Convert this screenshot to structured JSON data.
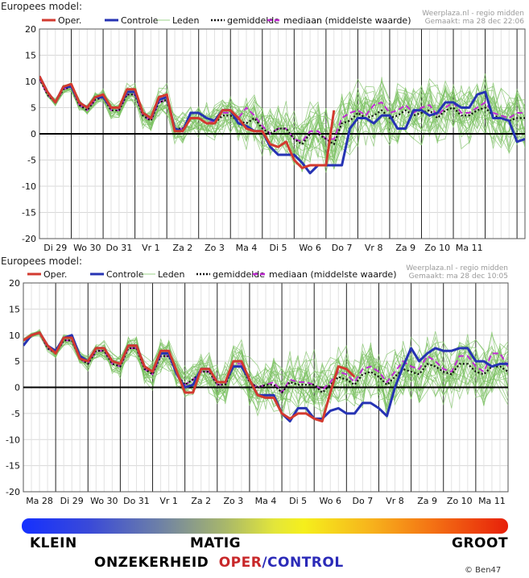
{
  "chart_data": [
    {
      "type": "line",
      "title": "Europees model:",
      "credit": [
        "Weerplaza.nl - regio midden",
        "Gemaakt: ma 28 dec 22:06"
      ],
      "legend": [
        "Oper.",
        "Controle",
        "Leden",
        "gemiddelde",
        "mediaan (middelste waarde)"
      ],
      "legend_position": "top",
      "ylim": [
        -20,
        20
      ],
      "yticks": [
        20,
        15,
        10,
        5,
        0,
        -5,
        -10,
        -15,
        -20
      ],
      "xlim": [
        0,
        15.25
      ],
      "day_labels": [
        "Di 29",
        "Wo 30",
        "Do 31",
        "Vr 1",
        "Za 2",
        "Zo 3",
        "Ma 4",
        "Di 5",
        "Wo 6",
        "Do 7",
        "Vr 8",
        "Za 9",
        "Zo 10",
        "Ma 11"
      ],
      "day_label_x": [
        0.5,
        1.5,
        2.5,
        3.5,
        4.5,
        5.5,
        6.5,
        7.5,
        8.5,
        9.5,
        10.5,
        11.5,
        12.5,
        13.5
      ],
      "series": [
        {
          "name": "Oper.",
          "color": "#d23a2f",
          "x": [
            0,
            0.25,
            0.5,
            0.75,
            1,
            1.25,
            1.5,
            1.75,
            2,
            2.25,
            2.5,
            2.75,
            3,
            3.25,
            3.5,
            3.75,
            4,
            4.25,
            4.5,
            4.75,
            5,
            5.25,
            5.5,
            5.75,
            6,
            6.25,
            6.5,
            6.75,
            7,
            7.25,
            7.5,
            7.75,
            8,
            8.25,
            8.5,
            8.75,
            9,
            9.25
          ],
          "values": [
            11,
            8,
            6,
            9,
            9.5,
            6,
            5,
            7,
            7.5,
            5,
            5,
            8.5,
            8.5,
            4,
            3,
            7,
            7.5,
            0.5,
            0.5,
            3,
            3,
            2,
            2,
            4.5,
            4.5,
            3,
            1,
            0.5,
            0.5,
            -2,
            -2.5,
            -1.5,
            -5,
            -6.5,
            -6,
            -6,
            -6,
            4.5
          ]
        },
        {
          "name": "Controle",
          "color": "#2633b3",
          "x": [
            0,
            0.25,
            0.5,
            0.75,
            1,
            1.25,
            1.5,
            1.75,
            2,
            2.25,
            2.5,
            2.75,
            3,
            3.25,
            3.5,
            3.75,
            4,
            4.25,
            4.5,
            4.75,
            5,
            5.25,
            5.5,
            5.75,
            6,
            6.25,
            6.5,
            6.75,
            7,
            7.25,
            7.5,
            7.75,
            8,
            8.25,
            8.5,
            8.75,
            9,
            9.25,
            9.5,
            9.75,
            10,
            10.25,
            10.5,
            10.75,
            11,
            11.25,
            11.5,
            11.75,
            12,
            12.25,
            12.5,
            12.75,
            13,
            13.25,
            13.5,
            13.75,
            14,
            14.25,
            14.5,
            14.75,
            15,
            15.25
          ],
          "values": [
            11,
            8,
            6,
            9,
            9,
            6,
            5,
            7,
            7,
            5,
            5,
            8,
            8,
            4,
            3,
            6.5,
            7,
            1,
            0.5,
            4,
            4,
            3,
            2.5,
            4.5,
            4.5,
            2,
            1.5,
            0.5,
            0.5,
            -2.5,
            -4,
            -4,
            -4,
            -5.5,
            -7.5,
            -6,
            -6,
            -6,
            -6,
            1,
            3,
            3,
            2,
            3.5,
            3.5,
            1,
            1,
            4.5,
            4.5,
            3.5,
            4,
            6,
            6,
            5,
            5,
            7.5,
            8,
            3,
            3,
            2.5,
            -1.5,
            -1
          ]
        },
        {
          "name": "gemiddelde",
          "color": "#111111",
          "x": [
            0,
            0.25,
            0.5,
            0.75,
            1,
            1.25,
            1.5,
            1.75,
            2,
            2.25,
            2.5,
            2.75,
            3,
            3.25,
            3.5,
            3.75,
            4,
            4.25,
            4.5,
            4.75,
            5,
            5.25,
            5.5,
            5.75,
            6,
            6.25,
            6.5,
            6.75,
            7,
            7.25,
            7.5,
            7.75,
            8,
            8.25,
            8.5,
            8.75,
            9,
            9.25,
            9.5,
            9.75,
            10,
            10.25,
            10.5,
            10.75,
            11,
            11.25,
            11.5,
            11.75,
            12,
            12.25,
            12.5,
            12.75,
            13,
            13.25,
            13.5,
            13.75,
            14,
            14.25,
            14.5,
            14.75,
            15,
            15.25
          ],
          "values": [
            10.5,
            7.5,
            6,
            8.5,
            9,
            5.5,
            4.5,
            6.5,
            7,
            4.5,
            4.5,
            7.5,
            7.5,
            3.5,
            2.5,
            6,
            6.5,
            1,
            1,
            3,
            3,
            2,
            2,
            3.5,
            3.5,
            2.5,
            2,
            3,
            1,
            0,
            1,
            1,
            -1,
            -2,
            0,
            0,
            -1,
            -2,
            2,
            2.5,
            4,
            3,
            3.5,
            4.5,
            3,
            3.5,
            4.5,
            3.5,
            4,
            4.5,
            3,
            4.5,
            5,
            3.5,
            3.5,
            4.5,
            5,
            3.5,
            3,
            2.5,
            3,
            3
          ]
        },
        {
          "name": "mediaan (middelste waarde)",
          "color": "#c02cd3",
          "x": [
            0,
            0.25,
            0.5,
            0.75,
            1,
            1.25,
            1.5,
            1.75,
            2,
            2.25,
            2.5,
            2.75,
            3,
            3.25,
            3.5,
            3.75,
            4,
            4.25,
            4.5,
            4.75,
            5,
            5.25,
            5.5,
            5.75,
            6,
            6.25,
            6.5,
            6.75,
            7,
            7.25,
            7.5,
            7.75,
            8,
            8.25,
            8.5,
            8.75,
            9,
            9.25,
            9.5,
            9.75,
            10,
            10.25,
            10.5,
            10.75,
            11,
            11.25,
            11.5,
            11.75,
            12,
            12.25,
            12.5,
            12.75,
            13,
            13.25,
            13.5,
            13.75,
            14,
            14.25,
            14.5,
            14.75,
            15,
            15.25
          ],
          "values": [
            10.5,
            7.5,
            6,
            8.5,
            9,
            5.5,
            4.5,
            6.5,
            7,
            4.5,
            4.5,
            7.5,
            7.5,
            3.5,
            2.5,
            6,
            6.5,
            1,
            1,
            3,
            3,
            2,
            2.5,
            4,
            4,
            3,
            5,
            3.5,
            1.5,
            0,
            1,
            1,
            -1,
            -1.5,
            0.5,
            0.5,
            -1,
            -1,
            3,
            4,
            4.5,
            3.5,
            5.5,
            6,
            4,
            4.5,
            5.5,
            4,
            5,
            5.5,
            3.5,
            5,
            6,
            4,
            4,
            5,
            6,
            4,
            3.5,
            3,
            4,
            4
          ]
        }
      ]
    },
    {
      "type": "line",
      "title": "Europees model:",
      "credit": [
        "Weerplaza.nl - regio midden",
        "Gemaakt: ma 28 dec 10:05"
      ],
      "legend": [
        "Oper.",
        "Controle",
        "Leden",
        "gemiddelde",
        "mediaan (middelste waarde)"
      ],
      "legend_position": "top",
      "ylim": [
        -20,
        20
      ],
      "yticks": [
        20,
        15,
        10,
        5,
        0,
        -5,
        -10,
        -15,
        -20
      ],
      "xlim": [
        0,
        15
      ],
      "day_labels": [
        "Ma 28",
        "Di 29",
        "Wo 30",
        "Do 31",
        "Vr 1",
        "Za 2",
        "Zo 3",
        "Ma 4",
        "Di 5",
        "Wo 6",
        "Do 7",
        "Vr 8",
        "Za 9",
        "Zo 10",
        "Ma 11"
      ],
      "day_label_x": [
        0.5,
        1.5,
        2.5,
        3.5,
        4.5,
        5.5,
        6.5,
        7.5,
        8.5,
        9.5,
        10.5,
        11.5,
        12.5,
        13.5,
        14.5
      ],
      "series": [
        {
          "name": "Oper.",
          "color": "#d23a2f",
          "x": [
            0,
            0.25,
            0.5,
            0.75,
            1,
            1.25,
            1.5,
            1.75,
            2,
            2.25,
            2.5,
            2.75,
            3,
            3.25,
            3.5,
            3.75,
            4,
            4.25,
            4.5,
            4.75,
            5,
            5.25,
            5.5,
            5.75,
            6,
            6.25,
            6.5,
            6.75,
            7,
            7.25,
            7.5,
            7.75,
            8,
            8.25,
            8.5,
            8.75,
            9,
            9.25,
            9.5,
            9.75,
            10,
            10.25
          ],
          "values": [
            9,
            10,
            10.5,
            8,
            6.5,
            9.5,
            9.5,
            5.5,
            5,
            7.5,
            7.5,
            5,
            4.5,
            8,
            8,
            4,
            3,
            7,
            7,
            3,
            -1,
            -1,
            3.5,
            3.5,
            1,
            1,
            5,
            5,
            1.5,
            -1.5,
            -2,
            -2,
            -5,
            -6,
            -5,
            -5,
            -6,
            -6.5,
            -1,
            4,
            3.5,
            2
          ]
        },
        {
          "name": "Controle",
          "color": "#2633b3",
          "x": [
            0,
            0.25,
            0.5,
            0.75,
            1,
            1.25,
            1.5,
            1.75,
            2,
            2.25,
            2.5,
            2.75,
            3,
            3.25,
            3.5,
            3.75,
            4,
            4.25,
            4.5,
            4.75,
            5,
            5.25,
            5.5,
            5.75,
            6,
            6.25,
            6.5,
            6.75,
            7,
            7.25,
            7.5,
            7.75,
            8,
            8.25,
            8.5,
            8.75,
            9,
            9.25,
            9.5,
            9.75,
            10,
            10.25,
            10.5,
            10.75,
            11,
            11.25,
            11.5,
            11.75,
            12,
            12.25,
            12.5,
            12.75,
            13,
            13.25,
            13.5,
            13.75,
            14,
            14.25,
            14.5,
            14.75,
            15
          ],
          "values": [
            8,
            10,
            10.5,
            8,
            7,
            9.5,
            10,
            6,
            5,
            7.5,
            7.5,
            5,
            4.5,
            8,
            8,
            4,
            3,
            6.5,
            6.5,
            2.5,
            0,
            0.5,
            3.5,
            3.5,
            1,
            1,
            4,
            4,
            1.5,
            -1.5,
            -1.5,
            -1.5,
            -5,
            -6.5,
            -4,
            -4,
            -6,
            -6,
            -4.5,
            -4,
            -5,
            -5,
            -3,
            -3,
            -4,
            -5.5,
            0,
            4,
            7.5,
            5,
            6.5,
            7.5,
            7,
            7,
            7.5,
            7.5,
            5,
            5,
            4,
            4.5,
            4.5
          ]
        },
        {
          "name": "gemiddelde",
          "color": "#111111",
          "x": [
            0,
            0.25,
            0.5,
            0.75,
            1,
            1.25,
            1.5,
            1.75,
            2,
            2.25,
            2.5,
            2.75,
            3,
            3.25,
            3.5,
            3.75,
            4,
            4.25,
            4.5,
            4.75,
            5,
            5.25,
            5.5,
            5.75,
            6,
            6.25,
            6.5,
            6.75,
            7,
            7.25,
            7.5,
            7.75,
            8,
            8.25,
            8.5,
            8.75,
            9,
            9.25,
            9.5,
            9.75,
            10,
            10.25,
            10.5,
            10.75,
            11,
            11.25,
            11.5,
            11.75,
            12,
            12.25,
            12.5,
            12.75,
            13,
            13.25,
            13.5,
            13.75,
            14,
            14.25,
            14.5,
            14.75,
            15
          ],
          "values": [
            9,
            10,
            10.5,
            7.5,
            6.5,
            9,
            9,
            5.5,
            4.5,
            7,
            7,
            4.5,
            4,
            7.5,
            7.5,
            3.5,
            2.5,
            6,
            6,
            2.5,
            0.5,
            1.5,
            3,
            3,
            0.5,
            0.5,
            4,
            4,
            1,
            0,
            0.5,
            0.5,
            -1,
            1,
            0.5,
            0.5,
            0.5,
            -1,
            0.5,
            2,
            1.5,
            0.5,
            2.5,
            3,
            2,
            0.5,
            2,
            3.5,
            3,
            2.5,
            4.5,
            4,
            3,
            2.5,
            4.5,
            4.5,
            3,
            2.5,
            4,
            4,
            3
          ]
        },
        {
          "name": "mediaan (middelste waarde)",
          "color": "#c02cd3",
          "x": [
            0,
            0.25,
            0.5,
            0.75,
            1,
            1.25,
            1.5,
            1.75,
            2,
            2.25,
            2.5,
            2.75,
            3,
            3.25,
            3.5,
            3.75,
            4,
            4.25,
            4.5,
            4.75,
            5,
            5.25,
            5.5,
            5.75,
            6,
            6.25,
            6.5,
            6.75,
            7,
            7.25,
            7.5,
            7.75,
            8,
            8.25,
            8.5,
            8.75,
            9,
            9.25,
            9.5,
            9.75,
            10,
            10.25,
            10.5,
            10.75,
            11,
            11.25,
            11.5,
            11.75,
            12,
            12.25,
            12.5,
            12.75,
            13,
            13.25,
            13.5,
            13.75,
            14,
            14.25,
            14.5,
            14.75,
            15
          ],
          "values": [
            9,
            10,
            10.5,
            7.5,
            6.5,
            9,
            9,
            5.5,
            4.5,
            7,
            7,
            4.5,
            4,
            7.5,
            7.5,
            3.5,
            2.5,
            6,
            6,
            2.5,
            0.5,
            1.5,
            3,
            3,
            0.5,
            0.5,
            4.5,
            4.5,
            1,
            0,
            0.5,
            1,
            -1,
            1.5,
            1,
            1,
            0.5,
            -0.5,
            1,
            3,
            2.5,
            1,
            3.5,
            4,
            3,
            1,
            3,
            5,
            4,
            3.5,
            6,
            5,
            3.5,
            3,
            6,
            6,
            4,
            3,
            6.5,
            6.5,
            4
          ]
        }
      ]
    }
  ],
  "uncertainty_scale": {
    "low": "KLEIN",
    "mid": "MATIG",
    "high": "GROOT",
    "title": "ONZEKERHEID",
    "oper": "OPER",
    "slash": "/",
    "control": "CONTROL",
    "oper_color": "#c8282a",
    "control_color": "#2b2ab8"
  },
  "copyright": "© Ben47"
}
